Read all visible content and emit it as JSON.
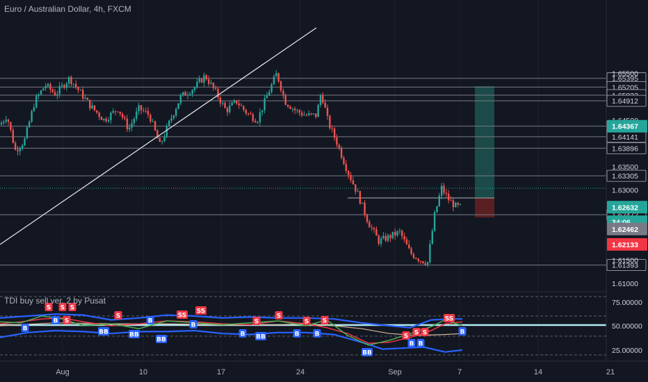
{
  "header": {
    "symbol_title": "Euro / Australian Dollar, 4h, FXCM",
    "indicator_title": "TDI buy sell ver. 2 by Pusat"
  },
  "colors": {
    "background": "#131722",
    "up": "#26a69a",
    "down": "#ef5350",
    "grid_line": "#787b86",
    "trendline": "#e0e3eb",
    "long_target_zone": "#1b4a48",
    "long_stop_zone": "#5a1f22",
    "current_price_tag": "#26a69a",
    "entry_tag": "#787b86",
    "stop_tag": "#f23645",
    "buy_signal": "#2962ff",
    "sell_signal": "#f23645",
    "tdi_blue": "#2962ff",
    "tdi_red": "#f23645",
    "tdi_green": "#4caf50",
    "tdi_cyan": "#26c6da"
  },
  "price_axis": {
    "levels": [
      "1.65395",
      "1.65205",
      "1.65032",
      "1.64912",
      "1.64369",
      "1.64141",
      "1.63896",
      "1.63305",
      "1.62472",
      "1.61393"
    ],
    "ticks": [
      "1.65500",
      "1.64500",
      "1.63500",
      "1.63000",
      "1.61500",
      "1.61000"
    ],
    "tags": [
      {
        "label": "1.64367",
        "kind": "target"
      },
      {
        "label": "1.62632",
        "kind": "last"
      },
      {
        "label": "34:06",
        "kind": "countdown"
      },
      {
        "label": "1.62462",
        "kind": "entry"
      },
      {
        "label": "1.62133",
        "kind": "stop"
      }
    ]
  },
  "indicator_axis": {
    "ticks": [
      "75.00000",
      "50.00000",
      "25.00000"
    ]
  },
  "time_axis": {
    "labels": [
      "Aug",
      "10",
      "17",
      "24",
      "Sep",
      "7",
      "14",
      "21"
    ]
  },
  "chart_data": {
    "type": "candlestick",
    "title": "Euro / Australian Dollar, 4h, FXCM",
    "ylim": [
      1.6085,
      1.6565
    ],
    "last_price": 1.62632,
    "horizontal_levels": [
      1.65395,
      1.65205,
      1.65032,
      1.64912,
      1.64369,
      1.64141,
      1.63896,
      1.63305,
      1.62472,
      1.61393
    ],
    "long_position": {
      "entry": 1.62462,
      "target": 1.64367,
      "stop": 1.62133
    },
    "indicator": {
      "name": "TDI buy sell ver. 2 by Pusat",
      "ylim": [
        15,
        85
      ],
      "levels": [
        75,
        50,
        25
      ],
      "signals": [
        "S",
        "S",
        "S",
        "B",
        "B",
        "S",
        "BB",
        "BB",
        "S",
        "BB",
        "SS",
        "SS",
        "B",
        "B",
        "S",
        "BB",
        "S",
        "B",
        "S",
        "B",
        "S",
        "B",
        "BB",
        "S",
        "S",
        "S",
        "B",
        "B",
        "SS",
        "B"
      ]
    }
  }
}
